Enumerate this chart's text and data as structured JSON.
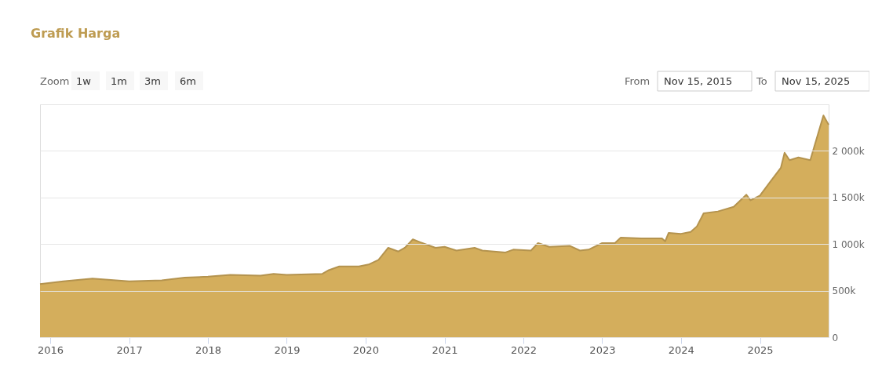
{
  "chart_data": {
    "type": "area",
    "title": "Grafik Harga",
    "annotations": [
      "Zoom",
      "1w",
      "1m",
      "3m",
      "6m",
      "From",
      "Nov 15, 2015",
      "To",
      "Nov 15, 2025"
    ],
    "x": [
      "2015-11-15",
      "2016-03-01",
      "2016-07-15",
      "2017-01-01",
      "2017-06-01",
      "2017-09-15",
      "2018-01-01",
      "2018-04-15",
      "2018-09-01",
      "2018-11-01",
      "2019-01-01",
      "2019-06-15",
      "2019-07-15",
      "2019-09-01",
      "2019-12-01",
      "2020-01-15",
      "2020-03-01",
      "2020-04-15",
      "2020-06-01",
      "2020-07-01",
      "2020-08-07",
      "2020-09-10",
      "2020-11-20",
      "2021-01-01",
      "2021-02-25",
      "2021-05-20",
      "2021-06-25",
      "2021-10-10",
      "2021-11-15",
      "2022-02-05",
      "2022-03-10",
      "2022-05-01",
      "2022-08-05",
      "2022-09-20",
      "2022-10-30",
      "2023-01-01",
      "2023-03-01",
      "2023-03-28",
      "2023-07-01",
      "2023-10-05",
      "2023-10-20",
      "2023-11-05",
      "2024-01-01",
      "2024-02-15",
      "2024-03-15",
      "2024-04-15",
      "2024-06-20",
      "2024-09-01",
      "2024-10-30",
      "2024-11-18",
      "2025-01-01",
      "2025-02-18",
      "2025-04-08",
      "2025-04-25",
      "2025-05-18",
      "2025-06-28",
      "2025-08-22",
      "2025-10-22",
      "2025-11-15"
    ],
    "series": [
      {
        "color": "#d4ae5c",
        "values": [
          570000,
          600000,
          630000,
          600000,
          610000,
          640000,
          650000,
          670000,
          660000,
          680000,
          670000,
          680000,
          720000,
          760000,
          760000,
          780000,
          830000,
          960000,
          920000,
          960000,
          1050000,
          1020000,
          960000,
          970000,
          930000,
          960000,
          930000,
          910000,
          940000,
          930000,
          1010000,
          970000,
          980000,
          930000,
          940000,
          1010000,
          1010000,
          1070000,
          1060000,
          1060000,
          1030000,
          1120000,
          1110000,
          1130000,
          1190000,
          1330000,
          1350000,
          1400000,
          1530000,
          1470000,
          1520000,
          1670000,
          1820000,
          1980000,
          1900000,
          1930000,
          1900000,
          2380000,
          2280000
        ]
      }
    ],
    "xlim": [
      "2015-11-15",
      "2025-11-15"
    ],
    "xticks": [
      "2016",
      "2017",
      "2018",
      "2019",
      "2020",
      "2021",
      "2022",
      "2023",
      "2024",
      "2025"
    ],
    "ylim": [
      0,
      2500000
    ],
    "yticks": [
      {
        "value": 0,
        "label": "0"
      },
      {
        "value": 500000,
        "label": "500k"
      },
      {
        "value": 1000000,
        "label": "1 000k"
      },
      {
        "value": 1500000,
        "label": "1 500k"
      },
      {
        "value": 2000000,
        "label": "2 000k"
      },
      {
        "value": 2500000,
        "label": null
      }
    ],
    "grid": "y"
  }
}
